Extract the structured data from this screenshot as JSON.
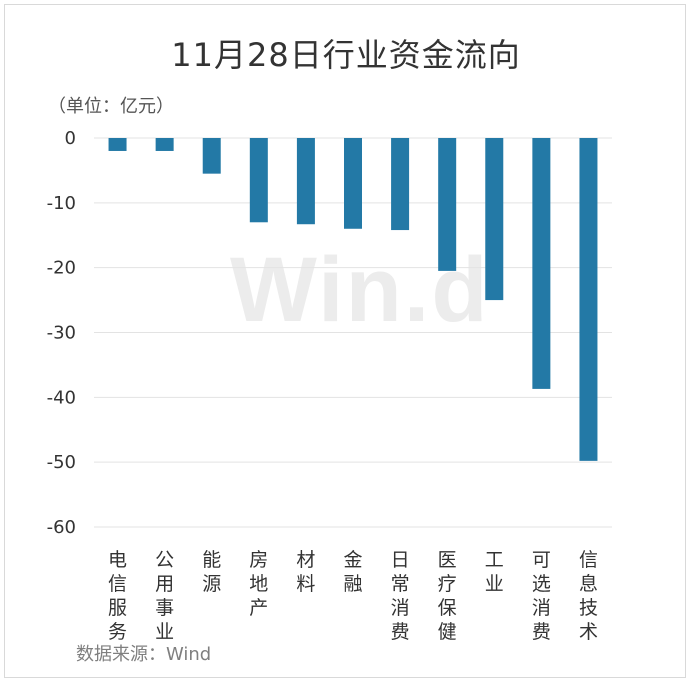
{
  "chart_data": {
    "type": "bar",
    "title": "11月28日行业资金流向",
    "unit_label": "（单位：亿元）",
    "source": "数据来源：Wind",
    "watermark": "Win.d",
    "categories": [
      "电信服务",
      "公用事业",
      "能源",
      "房地产",
      "材料",
      "金融",
      "日常消费",
      "医疗保健",
      "工业",
      "可选消费",
      "信息技术"
    ],
    "values": [
      -2.0,
      -2.0,
      -5.5,
      -13.0,
      -13.3,
      -14.0,
      -14.2,
      -20.5,
      -25.0,
      -38.7,
      -49.8
    ],
    "ylim": [
      -60,
      0
    ],
    "yticks": [
      0,
      -10,
      -20,
      -30,
      -40,
      -50,
      -60
    ],
    "bar_color": "#2379a6",
    "grid": true
  }
}
